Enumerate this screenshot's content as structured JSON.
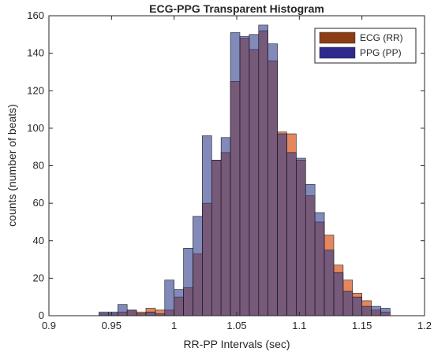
{
  "chart_data": {
    "type": "histogram",
    "title": "ECG-PPG Transparent Histogram",
    "xlabel": "RR-PP Intervals (sec)",
    "ylabel": "counts (number of beats)",
    "xlim": [
      0.9,
      1.2
    ],
    "ylim": [
      0,
      160
    ],
    "xticks": [
      "0.9",
      "0.95",
      "1",
      "1.05",
      "1.1",
      "1.15",
      "1.2"
    ],
    "yticks": [
      "0",
      "20",
      "40",
      "60",
      "80",
      "100",
      "120",
      "140",
      "160"
    ],
    "grid": false,
    "legend_position": "top-right",
    "series": [
      {
        "name": "ECG (RR)",
        "color": "#d95319",
        "bin_width": 0.0075,
        "bins": [
          {
            "x0": 0.94,
            "count": 1
          },
          {
            "x0": 0.9475,
            "count": 1
          },
          {
            "x0": 0.955,
            "count": 2
          },
          {
            "x0": 0.9625,
            "count": 3
          },
          {
            "x0": 0.97,
            "count": 2
          },
          {
            "x0": 0.9775,
            "count": 4
          },
          {
            "x0": 0.985,
            "count": 3
          },
          {
            "x0": 0.9925,
            "count": 3
          },
          {
            "x0": 1.0,
            "count": 10
          },
          {
            "x0": 1.0075,
            "count": 15
          },
          {
            "x0": 1.015,
            "count": 33
          },
          {
            "x0": 1.0225,
            "count": 60
          },
          {
            "x0": 1.03,
            "count": 83
          },
          {
            "x0": 1.0375,
            "count": 87
          },
          {
            "x0": 1.045,
            "count": 125
          },
          {
            "x0": 1.0525,
            "count": 148
          },
          {
            "x0": 1.06,
            "count": 142
          },
          {
            "x0": 1.0675,
            "count": 152
          },
          {
            "x0": 1.075,
            "count": 136
          },
          {
            "x0": 1.0825,
            "count": 98
          },
          {
            "x0": 1.09,
            "count": 97
          },
          {
            "x0": 1.0975,
            "count": 83
          },
          {
            "x0": 1.105,
            "count": 64
          },
          {
            "x0": 1.1125,
            "count": 50
          },
          {
            "x0": 1.12,
            "count": 43
          },
          {
            "x0": 1.1275,
            "count": 27
          },
          {
            "x0": 1.135,
            "count": 19
          },
          {
            "x0": 1.1425,
            "count": 12
          },
          {
            "x0": 1.15,
            "count": 8
          },
          {
            "x0": 1.1575,
            "count": 3
          },
          {
            "x0": 1.165,
            "count": 2
          }
        ]
      },
      {
        "name": "PPG (PP)",
        "color": "#2f3c8c",
        "bin_width": 0.0075,
        "bins": [
          {
            "x0": 0.94,
            "count": 2
          },
          {
            "x0": 0.9475,
            "count": 2
          },
          {
            "x0": 0.955,
            "count": 6
          },
          {
            "x0": 0.9625,
            "count": 3
          },
          {
            "x0": 0.97,
            "count": 1
          },
          {
            "x0": 0.9775,
            "count": 2
          },
          {
            "x0": 0.985,
            "count": 1
          },
          {
            "x0": 0.9925,
            "count": 19
          },
          {
            "x0": 1.0,
            "count": 14
          },
          {
            "x0": 1.0075,
            "count": 36
          },
          {
            "x0": 1.015,
            "count": 53
          },
          {
            "x0": 1.0225,
            "count": 96
          },
          {
            "x0": 1.03,
            "count": 83
          },
          {
            "x0": 1.0375,
            "count": 95
          },
          {
            "x0": 1.045,
            "count": 151
          },
          {
            "x0": 1.0525,
            "count": 149
          },
          {
            "x0": 1.06,
            "count": 150
          },
          {
            "x0": 1.0675,
            "count": 155
          },
          {
            "x0": 1.075,
            "count": 145
          },
          {
            "x0": 1.0825,
            "count": 97
          },
          {
            "x0": 1.09,
            "count": 87
          },
          {
            "x0": 1.0975,
            "count": 84
          },
          {
            "x0": 1.105,
            "count": 70
          },
          {
            "x0": 1.1125,
            "count": 55
          },
          {
            "x0": 1.12,
            "count": 35
          },
          {
            "x0": 1.1275,
            "count": 23
          },
          {
            "x0": 1.135,
            "count": 13
          },
          {
            "x0": 1.1425,
            "count": 10
          },
          {
            "x0": 1.15,
            "count": 5
          },
          {
            "x0": 1.1575,
            "count": 5
          },
          {
            "x0": 1.165,
            "count": 4
          }
        ]
      }
    ]
  }
}
